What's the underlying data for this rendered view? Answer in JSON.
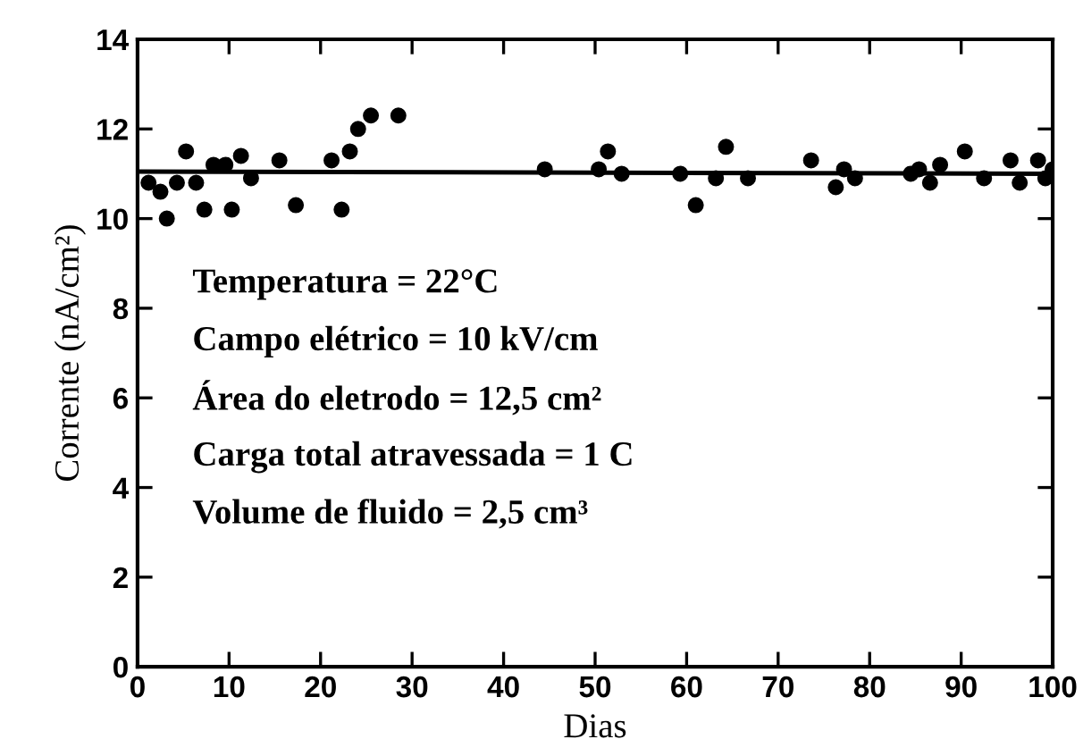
{
  "chart_data": {
    "type": "scatter",
    "xlabel": "Dias",
    "ylabel": "Corrente (nA/cm²)",
    "xlim": [
      0,
      100
    ],
    "xticks": [
      0,
      10,
      20,
      30,
      40,
      50,
      60,
      70,
      80,
      90,
      100
    ],
    "ylim": [
      0,
      14
    ],
    "yticks": [
      0,
      2,
      4,
      6,
      8,
      10,
      12,
      14
    ],
    "grid": false,
    "marker": "circle",
    "series": [
      {
        "color": "#000000",
        "x": [
          1.2,
          2.5,
          3.2,
          4.3,
          5.3,
          6.4,
          7.3,
          8.3,
          9.6,
          10.3,
          11.3,
          12.4,
          15.5,
          17.3,
          21.2,
          22.3,
          23.2,
          24.1,
          25.5,
          28.5,
          44.5,
          50.4,
          51.4,
          52.9,
          59.3,
          61.0,
          63.2,
          64.3,
          66.7,
          73.6,
          76.3,
          77.2,
          78.4,
          84.5,
          85.4,
          86.6,
          87.7,
          90.4,
          92.5,
          95.4,
          96.4,
          98.4,
          99.2,
          100
        ],
        "values": [
          10.8,
          10.6,
          10.0,
          10.8,
          11.5,
          10.8,
          10.2,
          11.2,
          11.2,
          10.2,
          11.4,
          10.9,
          11.3,
          10.3,
          11.3,
          10.2,
          11.5,
          12.0,
          12.3,
          12.3,
          11.1,
          11.1,
          11.5,
          11.0,
          11.0,
          10.3,
          10.9,
          11.6,
          10.9,
          11.3,
          10.7,
          11.1,
          10.9,
          11.0,
          11.1,
          10.8,
          11.2,
          11.5,
          10.9,
          11.3,
          10.8,
          11.3,
          10.9,
          11.1
        ]
      },
      {
        "type": "line",
        "color": "#000000",
        "line_style": "solid",
        "marker": "none",
        "x": [
          0,
          100
        ],
        "values": [
          11.05,
          11.0
        ]
      }
    ],
    "annotations": [
      "Temperatura = 22°C",
      "Campo elétrico = 10 kV/cm",
      "Área do eletrodo = 12,5 cm²",
      "Carga total atravessada = 1 C",
      "Volume de fluido = 2,5 cm³"
    ]
  }
}
